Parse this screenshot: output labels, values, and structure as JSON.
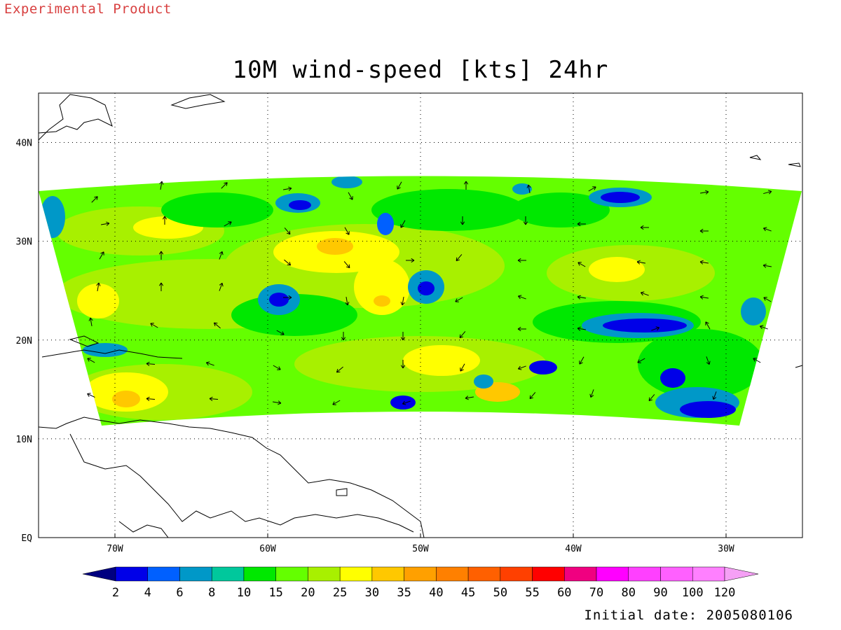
{
  "header": {
    "experimental_label": "Experimental Product",
    "title": "10M wind-speed [kts] 24hr"
  },
  "footer": {
    "initial_date": "Initial date: 2005080106"
  },
  "map": {
    "lon_range": [
      -75,
      -25
    ],
    "lat_range": [
      0,
      45
    ],
    "lon_ticks": [
      {
        "value": -70,
        "label": "70W"
      },
      {
        "value": -60,
        "label": "60W"
      },
      {
        "value": -50,
        "label": "50W"
      },
      {
        "value": -40,
        "label": "40W"
      },
      {
        "value": -30,
        "label": "30W"
      }
    ],
    "lat_ticks": [
      {
        "value": 0,
        "label": "EQ"
      },
      {
        "value": 10,
        "label": "10N"
      },
      {
        "value": 20,
        "label": "20N"
      },
      {
        "value": 30,
        "label": "30N"
      },
      {
        "value": 40,
        "label": "40N"
      }
    ],
    "grid": "dotted"
  },
  "colorbar": {
    "labels": [
      "2",
      "4",
      "6",
      "8",
      "10",
      "15",
      "20",
      "25",
      "30",
      "35",
      "40",
      "45",
      "50",
      "55",
      "60",
      "70",
      "80",
      "90",
      "100",
      "120"
    ],
    "under_color": "#000080",
    "over_color": "#f5a0f5",
    "colors": [
      "#0000e8",
      "#0060ff",
      "#0098c8",
      "#00c89c",
      "#00e800",
      "#64ff00",
      "#a8f000",
      "#ffff00",
      "#ffc800",
      "#ffa000",
      "#ff8000",
      "#ff6000",
      "#ff4000",
      "#ff0000",
      "#f00080",
      "#ff00ff",
      "#ff40ff",
      "#ff60ff",
      "#ff80ff"
    ]
  },
  "wind_field": {
    "units": "kts",
    "min_wind_speed": 2,
    "max_wind_speed": 35,
    "domain_lat_range": [
      12,
      36.5
    ],
    "domain_lon_range_south": [
      -70,
      -29
    ],
    "domain_lon_range_north": [
      -75,
      -25
    ]
  }
}
